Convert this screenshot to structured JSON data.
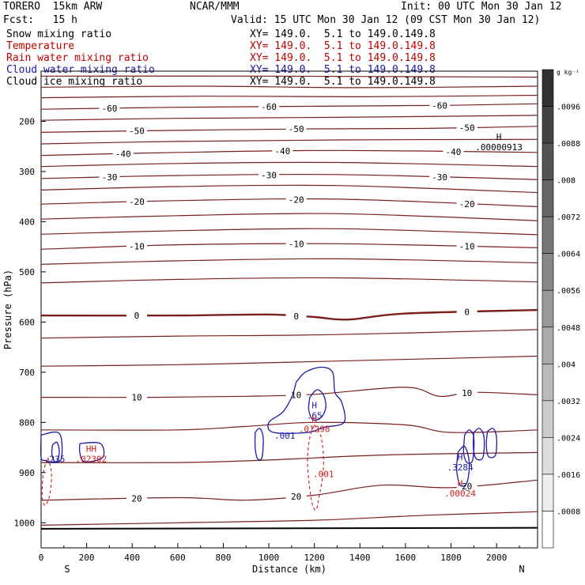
{
  "header": {
    "model": "TORERO  15km ARW",
    "center": "NCAR/MMM",
    "init": "Init: 00 UTC Mon 30 Jan 12",
    "fcst": "Fcst:   15 h",
    "valid": "Valid: 15 UTC Mon 30 Jan 12 (09 CST Mon 30 Jan 12)"
  },
  "fields": [
    {
      "name": "Snow mixing ratio",
      "range": "XY= 149.0.  5.1 to 149.0.149.8",
      "color": "#000000"
    },
    {
      "name": "Temperature",
      "range": "XY= 149.0.  5.1 to 149.0.149.8",
      "color": "#c00000"
    },
    {
      "name": "Rain water mixing ratio",
      "range": "XY= 149.0.  5.1 to 149.0.149.8",
      "color": "#c00000"
    },
    {
      "name": "Cloud water mixing ratio",
      "range": "XY= 149.0.  5.1 to 149.0.149.8",
      "color": "#1a1aa6"
    },
    {
      "name": "Cloud ice mixing ratio",
      "range": "XY= 149.0.  5.1 to 149.0.149.8",
      "color": "#000000"
    }
  ],
  "colors": {
    "temperature": "#7a1e1e",
    "rain": "#d02020",
    "cloud_water": "#1a1aa6",
    "axes": "#000000"
  },
  "chart_data": {
    "type": "contour cross-section",
    "xlabel": "Distance (km)",
    "ylabel": "Pressure (hPa)",
    "xlim": [
      0,
      2180
    ],
    "ylim": [
      1050,
      100
    ],
    "x_ticks": [
      0,
      200,
      400,
      600,
      800,
      1000,
      1200,
      1400,
      1600,
      1800,
      2000
    ],
    "y_ticks": [
      200,
      300,
      400,
      500,
      600,
      700,
      800,
      900,
      1000
    ],
    "end_labels": {
      "left": "S",
      "right": "N"
    },
    "colorbar": {
      "unit": "g kg⁻¹",
      "ticks": [
        ".0096",
        ".0088",
        ".008",
        ".0072",
        ".0064",
        ".0056",
        ".0048",
        ".004",
        ".0032",
        ".0024",
        ".0016",
        ".0008"
      ],
      "ticks_value": [
        0.0096,
        0.0088,
        0.008,
        0.0072,
        0.0064,
        0.0056,
        0.0048,
        0.004,
        0.0032,
        0.0024,
        0.0016,
        0.0008
      ]
    },
    "temperature_contours": [
      {
        "level": null,
        "points": [
          [
            0,
            110
          ],
          [
            1000,
            110
          ],
          [
            2180,
            112
          ]
        ]
      },
      {
        "level": null,
        "points": [
          [
            0,
            132
          ],
          [
            700,
            130
          ],
          [
            1400,
            133
          ],
          [
            2180,
            130
          ]
        ]
      },
      {
        "level": null,
        "points": [
          [
            0,
            153
          ],
          [
            700,
            150
          ],
          [
            1400,
            151
          ],
          [
            2180,
            148
          ]
        ]
      },
      {
        "level": -60,
        "points": [
          [
            0,
            176
          ],
          [
            600,
            172
          ],
          [
            1200,
            170
          ],
          [
            1800,
            168
          ],
          [
            2180,
            165
          ]
        ]
      },
      {
        "level": null,
        "points": [
          [
            0,
            198
          ],
          [
            600,
            194
          ],
          [
            1300,
            192
          ],
          [
            2180,
            188
          ]
        ]
      },
      {
        "level": -50,
        "points": [
          [
            0,
            222
          ],
          [
            600,
            218
          ],
          [
            1200,
            215
          ],
          [
            1700,
            214
          ],
          [
            2180,
            210
          ]
        ]
      },
      {
        "level": null,
        "points": [
          [
            0,
            245
          ],
          [
            600,
            240
          ],
          [
            1300,
            237
          ],
          [
            2180,
            236
          ]
        ]
      },
      {
        "level": -40,
        "points": [
          [
            0,
            268
          ],
          [
            600,
            262
          ],
          [
            1300,
            258
          ],
          [
            2180,
            262
          ]
        ]
      },
      {
        "level": null,
        "points": [
          [
            0,
            290
          ],
          [
            600,
            284
          ],
          [
            1300,
            282
          ],
          [
            2180,
            290
          ]
        ]
      },
      {
        "level": -30,
        "points": [
          [
            0,
            314
          ],
          [
            600,
            308
          ],
          [
            1300,
            306
          ],
          [
            2180,
            316
          ]
        ]
      },
      {
        "level": null,
        "points": [
          [
            0,
            337
          ],
          [
            600,
            330
          ],
          [
            1300,
            328
          ],
          [
            2180,
            342
          ]
        ]
      },
      {
        "level": -20,
        "points": [
          [
            0,
            365
          ],
          [
            600,
            358
          ],
          [
            1300,
            355
          ],
          [
            2180,
            370
          ]
        ]
      },
      {
        "level": null,
        "points": [
          [
            0,
            395
          ],
          [
            600,
            388
          ],
          [
            1300,
            384
          ],
          [
            2180,
            398
          ]
        ]
      },
      {
        "level": null,
        "points": [
          [
            0,
            425
          ],
          [
            600,
            418
          ],
          [
            1300,
            414
          ],
          [
            2180,
            426
          ]
        ]
      },
      {
        "level": -10,
        "points": [
          [
            0,
            455
          ],
          [
            600,
            446
          ],
          [
            1300,
            444
          ],
          [
            2180,
            452
          ]
        ]
      },
      {
        "level": null,
        "points": [
          [
            0,
            485
          ],
          [
            600,
            478
          ],
          [
            1300,
            474
          ],
          [
            2180,
            482
          ]
        ]
      },
      {
        "level": null,
        "points": [
          [
            0,
            522
          ],
          [
            600,
            515
          ],
          [
            1300,
            512
          ],
          [
            2180,
            520
          ]
        ]
      },
      {
        "level": 0,
        "points": [
          [
            0,
            587
          ],
          [
            600,
            587
          ],
          [
            1000,
            585
          ],
          [
            1200,
            590
          ],
          [
            1350,
            595
          ],
          [
            1600,
            583
          ],
          [
            2180,
            576
          ]
        ]
      },
      {
        "level": null,
        "points": [
          [
            0,
            632
          ],
          [
            600,
            628
          ],
          [
            1300,
            625
          ],
          [
            2180,
            615
          ]
        ]
      },
      {
        "level": null,
        "points": [
          [
            0,
            688
          ],
          [
            600,
            685
          ],
          [
            1100,
            680
          ],
          [
            2180,
            668
          ]
        ]
      },
      {
        "level": 10,
        "points": [
          [
            0,
            750
          ],
          [
            500,
            750
          ],
          [
            900,
            748
          ],
          [
            1200,
            744
          ],
          [
            1600,
            730
          ],
          [
            1750,
            748
          ],
          [
            1900,
            740
          ],
          [
            2180,
            745
          ]
        ]
      },
      {
        "level": null,
        "points": [
          [
            0,
            815
          ],
          [
            600,
            815
          ],
          [
            900,
            808
          ],
          [
            1200,
            800
          ],
          [
            1600,
            805
          ],
          [
            1800,
            820
          ],
          [
            2180,
            815
          ]
        ]
      },
      {
        "level": null,
        "points": [
          [
            0,
            880
          ],
          [
            600,
            880
          ],
          [
            1000,
            875
          ],
          [
            1500,
            865
          ],
          [
            2180,
            860
          ]
        ]
      },
      {
        "level": 20,
        "points": [
          [
            0,
            955
          ],
          [
            600,
            950
          ],
          [
            900,
            955
          ],
          [
            1200,
            945
          ],
          [
            1500,
            925
          ],
          [
            1800,
            930
          ],
          [
            2180,
            915
          ]
        ]
      },
      {
        "level": null,
        "points": [
          [
            0,
            1005
          ],
          [
            600,
            1000
          ],
          [
            1200,
            995
          ],
          [
            1700,
            985
          ],
          [
            2180,
            978
          ]
        ]
      }
    ],
    "cloud_water_maxima": [
      {
        "label": "H",
        "value": ".65",
        "x": 1200,
        "p": 775
      },
      {
        "label": "",
        "value": ".001",
        "x": 1070,
        "p": 815
      },
      {
        "label": "H",
        "value": ".3284",
        "x": 1840,
        "p": 878
      },
      {
        "label": "",
        "value": ".235",
        "x": 60,
        "p": 862
      }
    ],
    "rain_maxima": [
      {
        "label": "H",
        "value": ".01298",
        "x": 1200,
        "p": 802
      },
      {
        "label": "",
        "value": ".001",
        "x": 1240,
        "p": 892
      },
      {
        "label": "HH",
        "value": ".02302",
        "x": 220,
        "p": 862
      },
      {
        "label": "H",
        "value": ".00024",
        "x": 1840,
        "p": 930
      }
    ],
    "snow_maxima": [
      {
        "label": "H",
        "value": ".00000913",
        "x": 2010,
        "p": 240
      }
    ]
  }
}
